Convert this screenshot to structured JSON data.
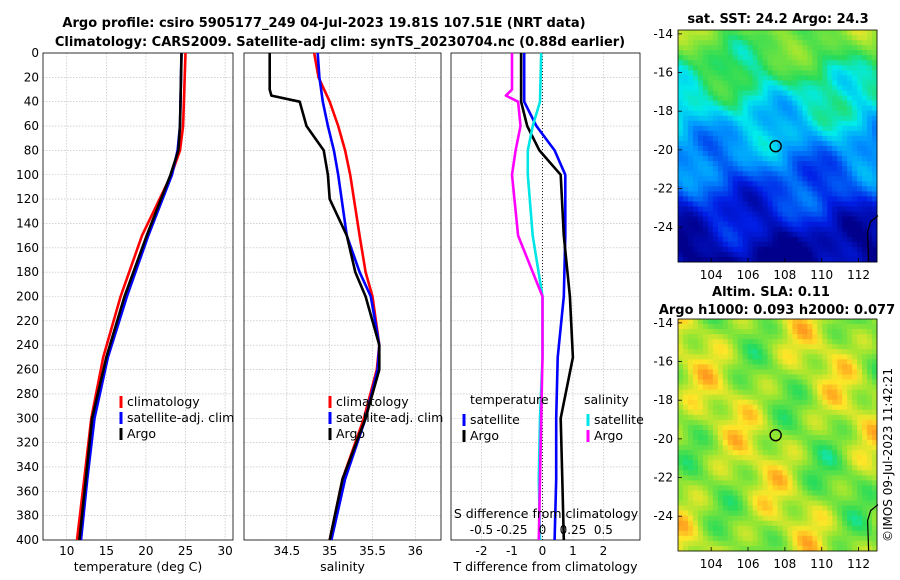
{
  "title": {
    "line1": "Argo profile: csiro 5905177_249 04-Jul-2023 19.81S 107.51E (NRT data)",
    "line2": "Climatology: CARS2009. Satellite-adj clim: synTS_20230704.nc (0.88d earlier)"
  },
  "colors": {
    "climatology": "#ff0000",
    "satellite": "#0000ff",
    "argo": "#000000",
    "temperature_diff_satellite": "#0000ff",
    "salinity_diff_satellite": "#00e5e5",
    "salinity_diff_argo": "#ff00ff"
  },
  "depth_axis": {
    "min": 0,
    "max": 400,
    "ticks": [
      0,
      20,
      40,
      60,
      80,
      100,
      120,
      140,
      160,
      180,
      200,
      220,
      240,
      260,
      280,
      300,
      320,
      340,
      360,
      380,
      400
    ]
  },
  "chart_data": [
    {
      "id": "temperature",
      "type": "line",
      "xlabel": "temperature (deg C)",
      "xlim": [
        7,
        31
      ],
      "xticks": [
        10,
        15,
        20,
        25,
        30
      ],
      "ylim": [
        400,
        0
      ],
      "grid": true,
      "legend": {
        "position": "bottom-right",
        "entries": [
          "climatology",
          "satellite-adj. clim",
          "Argo"
        ]
      },
      "series": [
        {
          "name": "climatology",
          "depth": [
            0,
            60,
            80,
            100,
            150,
            200,
            250,
            300,
            350,
            400
          ],
          "values": [
            25.0,
            24.7,
            24.3,
            23.2,
            19.5,
            16.8,
            14.6,
            13.1,
            12.2,
            11.3
          ]
        },
        {
          "name": "satellite-adj. clim",
          "depth": [
            0,
            60,
            80,
            100,
            150,
            200,
            250,
            300,
            350,
            400
          ],
          "values": [
            24.5,
            24.3,
            24.0,
            23.3,
            20.3,
            17.6,
            15.2,
            13.5,
            12.6,
            11.8
          ]
        },
        {
          "name": "Argo",
          "depth": [
            0,
            60,
            80,
            100,
            150,
            200,
            250,
            300,
            350,
            400
          ],
          "values": [
            24.5,
            24.3,
            24.1,
            23.1,
            20.1,
            17.3,
            15.0,
            13.2,
            12.4,
            11.6
          ]
        }
      ]
    },
    {
      "id": "salinity",
      "type": "line",
      "xlabel": "salinity",
      "xlim": [
        34.0,
        36.3
      ],
      "xticks": [
        34.5,
        35,
        35.5,
        36
      ],
      "ylim": [
        400,
        0
      ],
      "grid": true,
      "legend": {
        "position": "bottom-right",
        "entries": [
          "climatology",
          "satellite-adj. clim",
          "Argo"
        ]
      },
      "series": [
        {
          "name": "climatology",
          "depth": [
            0,
            20,
            40,
            60,
            80,
            100,
            150,
            180,
            200,
            240,
            260,
            300,
            350,
            400
          ],
          "values": [
            34.82,
            34.87,
            35.0,
            35.1,
            35.18,
            35.24,
            35.35,
            35.42,
            35.5,
            35.58,
            35.55,
            35.4,
            35.15,
            35.0
          ],
          "tick_labels_shown": true
        },
        {
          "name": "satellite-adj. clim",
          "depth": [
            0,
            20,
            40,
            60,
            80,
            100,
            150,
            180,
            200,
            240,
            260,
            300,
            350,
            400
          ],
          "values": [
            34.86,
            34.88,
            34.92,
            34.98,
            35.05,
            35.1,
            35.2,
            35.35,
            35.48,
            35.58,
            35.56,
            35.42,
            35.18,
            35.02
          ]
        },
        {
          "name": "Argo",
          "depth": [
            0,
            30,
            35,
            40,
            60,
            80,
            100,
            120,
            150,
            180,
            200,
            240,
            260,
            300,
            350,
            400
          ],
          "values": [
            34.3,
            34.3,
            34.32,
            34.65,
            34.73,
            34.93,
            34.98,
            35.0,
            35.2,
            35.3,
            35.42,
            35.58,
            35.58,
            35.42,
            35.15,
            35.0
          ]
        }
      ]
    },
    {
      "id": "difference",
      "type": "line",
      "xlabel": "T difference from climatology",
      "xlabel_top": "S difference from climatology",
      "xlim": [
        -3,
        3.2
      ],
      "xticks": [
        -2,
        -1,
        0,
        1,
        2
      ],
      "xlim_salinity": [
        -0.75,
        0.8
      ],
      "xticks_salinity": [
        -0.5,
        -0.25,
        0,
        0.25,
        0.5
      ],
      "xtick_labels_salinity": [
        "-0.5",
        "-0.25",
        "0",
        "0.25",
        "0.5"
      ],
      "ylim": [
        400,
        0
      ],
      "grid": true,
      "legend": {
        "position": "bottom",
        "temperature_title": "temperature",
        "salinity_title": "salinity",
        "entries": [
          "satellite",
          "Argo",
          "satellite",
          "Argo"
        ]
      },
      "series": [
        {
          "name": "T satellite",
          "depth": [
            0,
            40,
            60,
            80,
            100,
            150,
            200,
            250,
            300,
            350,
            400
          ],
          "values": [
            -0.6,
            -0.6,
            -0.2,
            0.4,
            0.75,
            0.75,
            0.7,
            0.5,
            0.45,
            0.45,
            0.4
          ]
        },
        {
          "name": "T Argo",
          "depth": [
            0,
            40,
            60,
            80,
            100,
            150,
            200,
            250,
            300,
            350,
            400
          ],
          "values": [
            -0.7,
            -0.7,
            -0.5,
            -0.1,
            0.6,
            0.7,
            0.9,
            1.0,
            0.6,
            0.65,
            0.7
          ]
        },
        {
          "name": "S satellite",
          "depth": [
            0,
            40,
            60,
            80,
            100,
            150,
            200,
            250,
            300,
            350,
            400
          ],
          "values": [
            -0.01,
            -0.02,
            -0.08,
            -0.12,
            -0.12,
            -0.08,
            0.0,
            0.0,
            -0.02,
            -0.03,
            -0.02
          ]
        },
        {
          "name": "S Argo",
          "depth": [
            0,
            30,
            35,
            40,
            60,
            80,
            100,
            150,
            200,
            250,
            300,
            350,
            400
          ],
          "values": [
            -0.25,
            -0.25,
            -0.3,
            -0.2,
            -0.18,
            -0.22,
            -0.25,
            -0.2,
            0.0,
            0.0,
            -0.01,
            -0.02,
            -0.03
          ]
        }
      ]
    },
    {
      "id": "sst_map",
      "type": "heatmap",
      "title": "sat. SST: 24.2  Argo: 24.3",
      "xlim": [
        102.2,
        113
      ],
      "ylim": [
        -25.8,
        -13.8
      ],
      "xticks": [
        104,
        106,
        108,
        110,
        112
      ],
      "yticks": [
        -14,
        -16,
        -18,
        -20,
        -22,
        -24
      ],
      "marker": {
        "lon": 107.5,
        "lat": -19.81
      }
    },
    {
      "id": "sla_map",
      "type": "heatmap",
      "title_line1": "Altim. SLA: 0.11",
      "title_line2": "Argo h1000: 0.093 h2000: 0.077",
      "xlim": [
        102.2,
        113
      ],
      "ylim": [
        -25.8,
        -13.8
      ],
      "xticks": [
        104,
        106,
        108,
        110,
        112
      ],
      "yticks": [
        -14,
        -16,
        -18,
        -20,
        -22,
        -24
      ],
      "marker": {
        "lon": 107.5,
        "lat": -19.81
      }
    }
  ],
  "footer": {
    "credit": "©IMOS 09-Jul-2023 11:42:21"
  }
}
